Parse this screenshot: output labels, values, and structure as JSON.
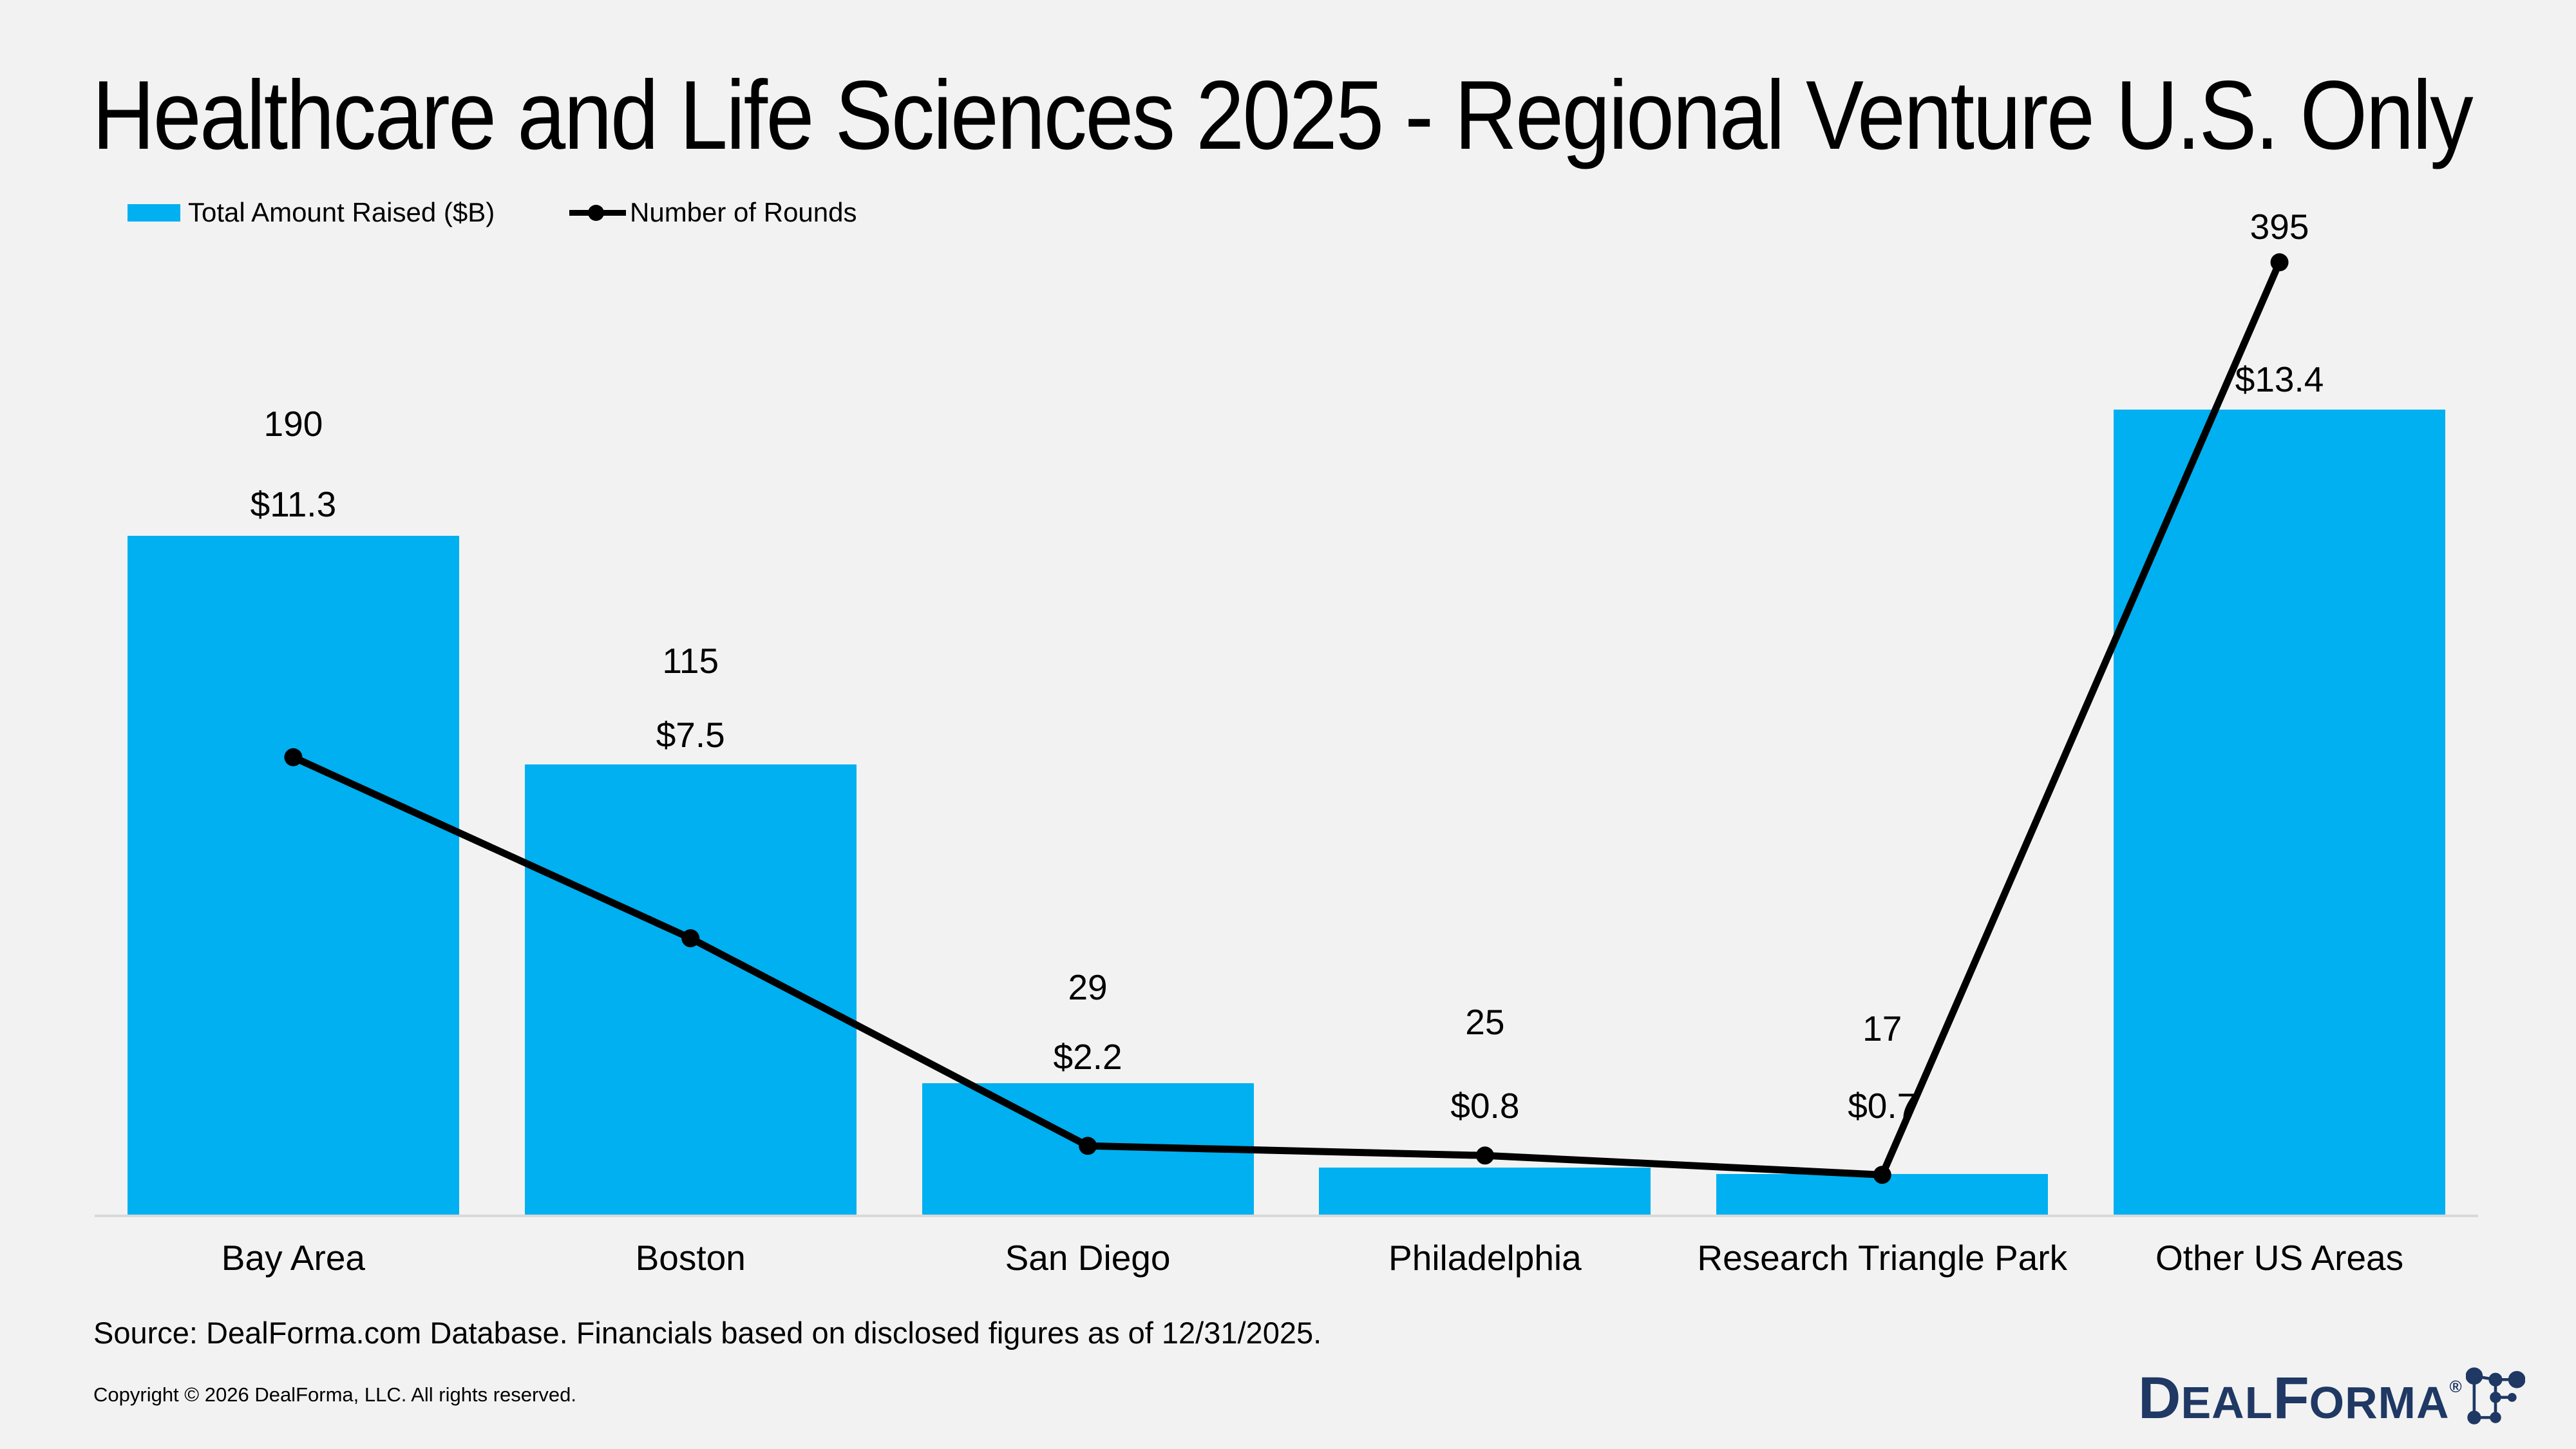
{
  "title": "Healthcare and Life Sciences 2025 - Regional Venture U.S. Only",
  "legend": {
    "bar_series_label": "Total Amount Raised ($B)",
    "line_series_label": "Number of Rounds"
  },
  "chart_data": {
    "type": "bar",
    "subtype": "combo-bar-line-dual-axis",
    "categories": [
      "Bay Area",
      "Boston",
      "San Diego",
      "Philadelphia",
      "Research Triangle Park",
      "Other US Areas"
    ],
    "series": [
      {
        "name": "Total Amount Raised ($B)",
        "type": "bar",
        "values": [
          11.3,
          7.5,
          2.2,
          0.8,
          0.7,
          13.4
        ],
        "labels": [
          "$11.3",
          "$7.5",
          "$2.2",
          "$0.8",
          "$0.7",
          "$13.4"
        ],
        "color": "#00B0F0"
      },
      {
        "name": "Number of Rounds",
        "type": "line",
        "values": [
          190,
          115,
          29,
          25,
          17,
          395
        ],
        "labels": [
          "190",
          "115",
          "29",
          "25",
          "17",
          "395"
        ],
        "color": "#000000"
      }
    ],
    "value_axis_left": {
      "min": 0,
      "max": 16,
      "visible": false
    },
    "value_axis_right": {
      "min": 0,
      "max": 400,
      "visible": false
    },
    "gridlines": false,
    "legend_position": "top-left",
    "data_labels": "above bars and points"
  },
  "footer": {
    "source": "Source: DealForma.com Database. Financials based on disclosed figures as of 12/31/2025.",
    "copyright": "Copyright © 2026 DealForma, LLC. All rights reserved."
  },
  "logo": {
    "part1": "D",
    "part2": "EAL",
    "part3": "F",
    "part4": "ORMA",
    "registered": "®",
    "color": "#1F3864"
  },
  "colors": {
    "background": "#F2F2F2",
    "bar": "#00B0F0",
    "line": "#000000",
    "axis_line": "#D9D9D9",
    "text": "#000000"
  }
}
